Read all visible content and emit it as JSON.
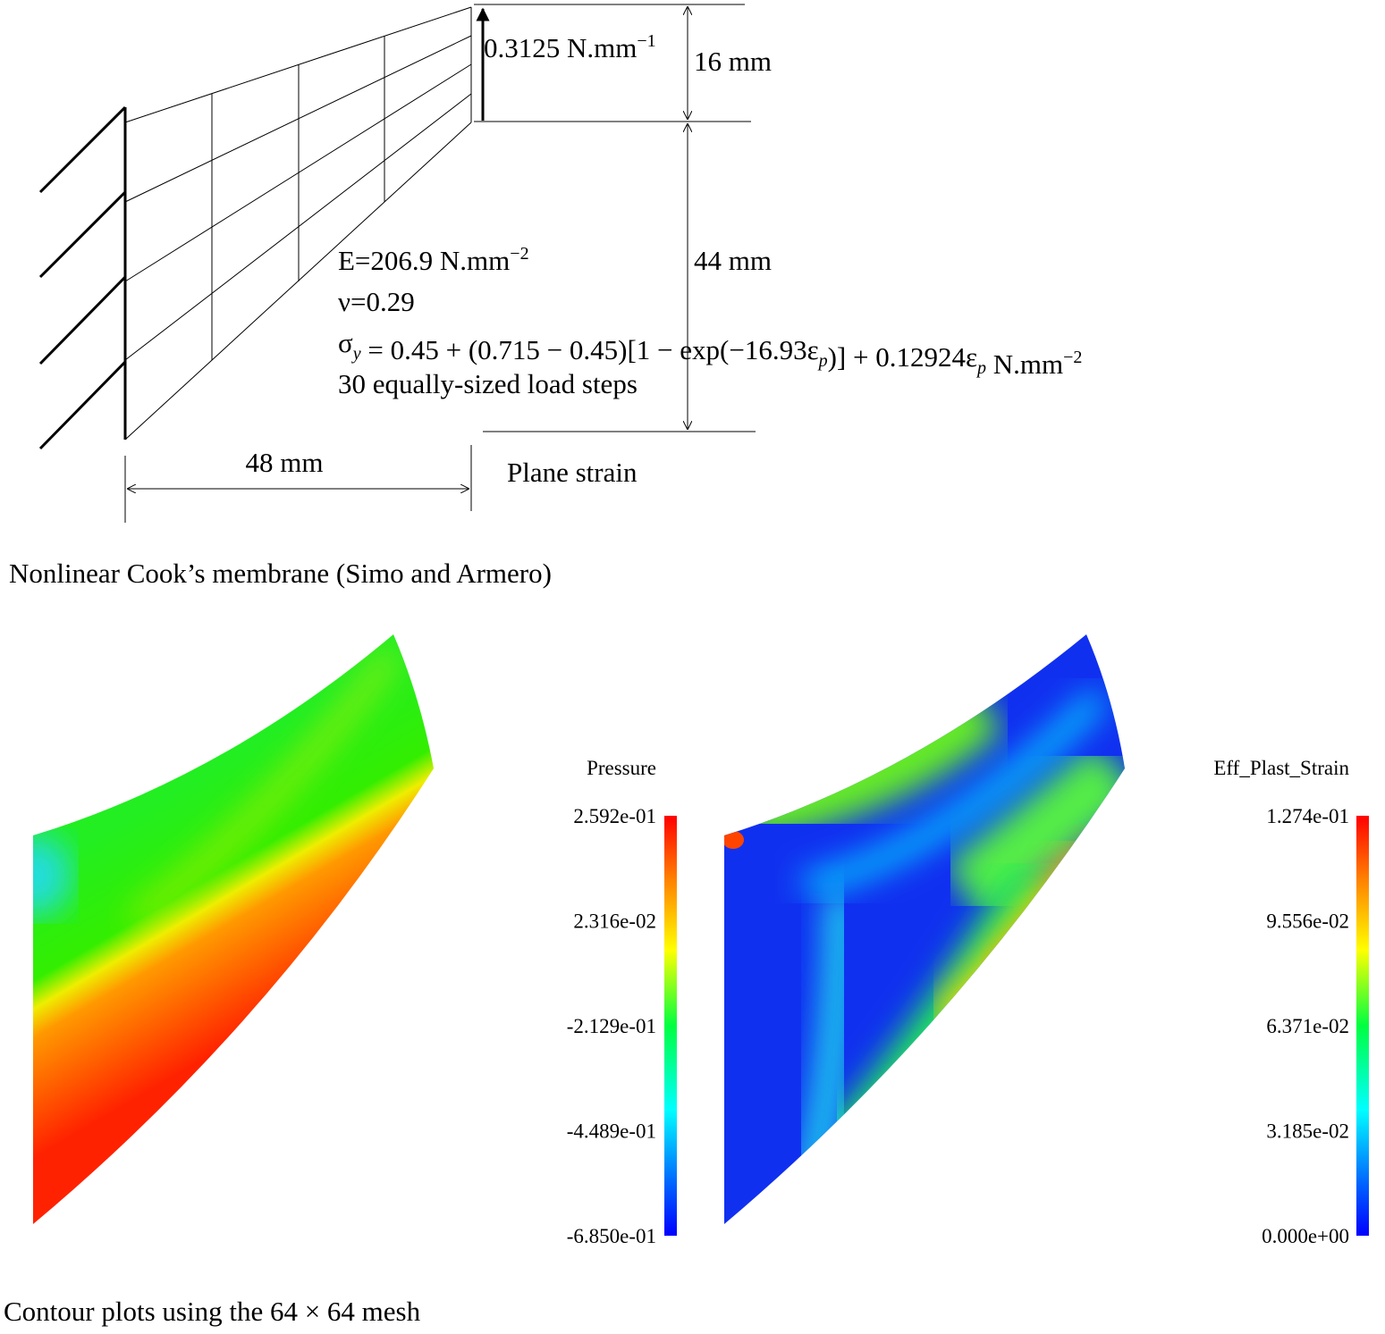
{
  "diagram": {
    "load": [
      {
        "text": "0.3125 N.mm"
      },
      {
        "sup": "−1"
      }
    ],
    "height_top": "16 mm",
    "height_bottom": "44 mm",
    "width": "48 mm",
    "properties": [
      [
        {
          "text": "E=206.9 N.mm"
        },
        {
          "sup": "−2"
        }
      ],
      [
        {
          "text": "ν=0.29"
        }
      ],
      [
        {
          "text": "σ"
        },
        {
          "sub": "y"
        },
        {
          "text": " = 0.45 + (0.715 − 0.45)[1 − exp(−16.93ε"
        },
        {
          "sub": "p"
        },
        {
          "text": ")] + 0.12924ε"
        },
        {
          "sub": "p"
        },
        {
          "text": " N.mm"
        },
        {
          "sup": "−2"
        }
      ],
      [
        {
          "text": "30 equally-sized load steps"
        }
      ]
    ],
    "plane_strain": "Plane strain",
    "caption": "Nonlinear Cook’s membrane (Simo and Armero)"
  },
  "contours": [
    {
      "title": "Pressure",
      "ticks": [
        {
          "value": 0.2592,
          "label": "2.592e-01"
        },
        {
          "value": 0.02316,
          "label": "2.316e-02"
        },
        {
          "value": -0.2129,
          "label": "-2.129e-01"
        },
        {
          "value": -0.4489,
          "label": "-4.489e-01"
        },
        {
          "value": -0.685,
          "label": "-6.850e-01"
        }
      ]
    },
    {
      "title": "Eff_Plast_Strain",
      "ticks": [
        {
          "value": 0.1274,
          "label": "1.274e-01"
        },
        {
          "value": 0.09556,
          "label": "9.556e-02"
        },
        {
          "value": 0.06371,
          "label": "6.371e-02"
        },
        {
          "value": 0.03185,
          "label": "3.185e-02"
        },
        {
          "value": 0,
          "label": "0.000e+00"
        }
      ]
    }
  ],
  "caption": "Contour plots using the 64 × 64 mesh"
}
